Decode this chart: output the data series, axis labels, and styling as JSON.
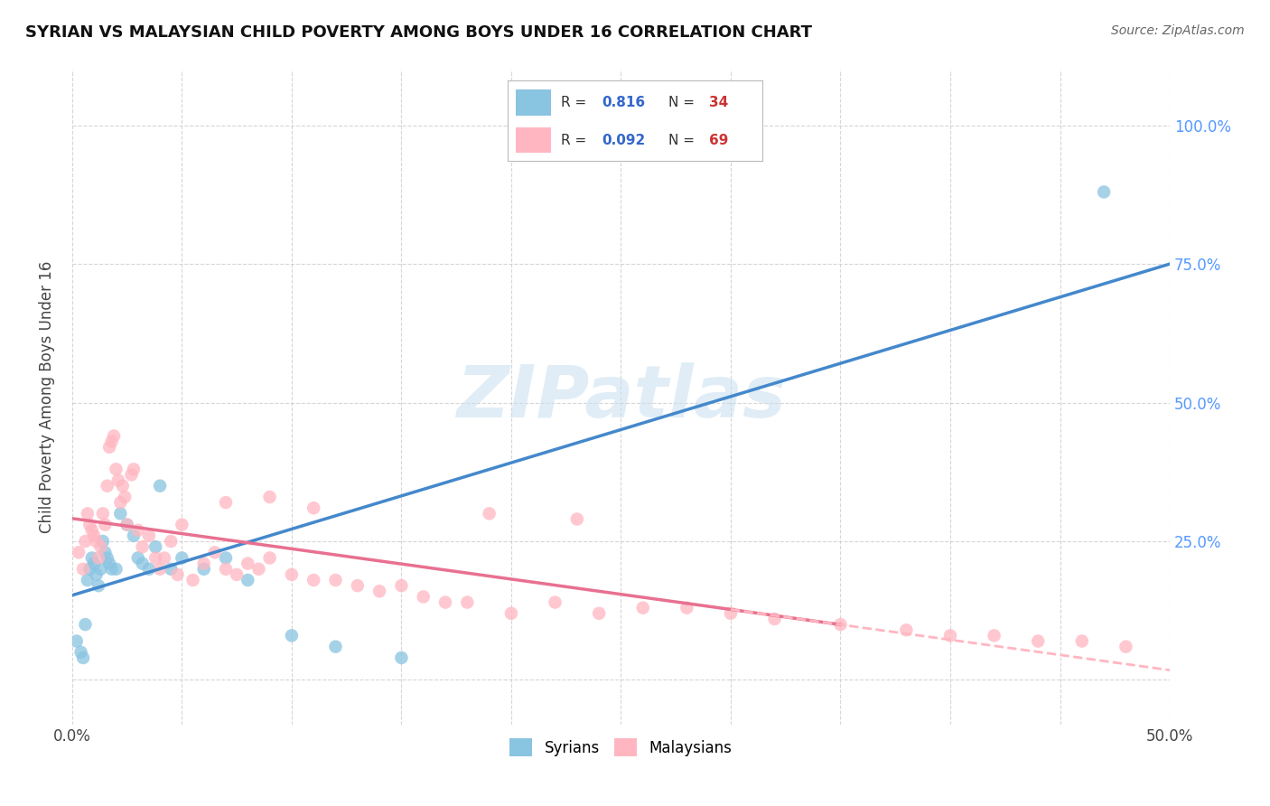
{
  "title": "SYRIAN VS MALAYSIAN CHILD POVERTY AMONG BOYS UNDER 16 CORRELATION CHART",
  "source": "Source: ZipAtlas.com",
  "ylabel": "Child Poverty Among Boys Under 16",
  "xlim": [
    0.0,
    0.5
  ],
  "ylim": [
    -0.08,
    1.1
  ],
  "syrian_color": "#89c4e1",
  "malaysian_color": "#ffb6c1",
  "syrian_line_color": "#4488cc",
  "malaysian_line_solid_color": "#e87090",
  "malaysian_line_dash_color": "#ffb6c1",
  "R_syrian": 0.816,
  "N_syrian": 34,
  "R_malaysian": 0.092,
  "N_malaysian": 69,
  "watermark": "ZIPatlas",
  "background_color": "#ffffff",
  "grid_color": "#cccccc",
  "right_tick_color": "#5599ff",
  "legend_r_color": "#3366cc",
  "legend_n_color": "#cc3333",
  "syrian_scatter_x": [
    0.002,
    0.004,
    0.005,
    0.006,
    0.007,
    0.008,
    0.009,
    0.01,
    0.011,
    0.012,
    0.013,
    0.014,
    0.015,
    0.016,
    0.017,
    0.018,
    0.02,
    0.022,
    0.025,
    0.028,
    0.03,
    0.032,
    0.035,
    0.038,
    0.04,
    0.045,
    0.05,
    0.06,
    0.07,
    0.08,
    0.1,
    0.12,
    0.15,
    0.47
  ],
  "syrian_scatter_y": [
    0.07,
    0.05,
    0.04,
    0.1,
    0.18,
    0.2,
    0.22,
    0.21,
    0.19,
    0.17,
    0.2,
    0.25,
    0.23,
    0.22,
    0.21,
    0.2,
    0.2,
    0.3,
    0.28,
    0.26,
    0.22,
    0.21,
    0.2,
    0.24,
    0.35,
    0.2,
    0.22,
    0.2,
    0.22,
    0.18,
    0.08,
    0.06,
    0.04,
    0.88
  ],
  "malaysian_scatter_x": [
    0.003,
    0.005,
    0.006,
    0.007,
    0.008,
    0.009,
    0.01,
    0.011,
    0.012,
    0.013,
    0.014,
    0.015,
    0.016,
    0.017,
    0.018,
    0.019,
    0.02,
    0.021,
    0.022,
    0.023,
    0.024,
    0.025,
    0.027,
    0.028,
    0.03,
    0.032,
    0.035,
    0.038,
    0.04,
    0.042,
    0.045,
    0.048,
    0.05,
    0.055,
    0.06,
    0.065,
    0.07,
    0.075,
    0.08,
    0.085,
    0.09,
    0.1,
    0.11,
    0.12,
    0.13,
    0.14,
    0.15,
    0.16,
    0.17,
    0.18,
    0.2,
    0.22,
    0.24,
    0.26,
    0.28,
    0.3,
    0.32,
    0.35,
    0.38,
    0.4,
    0.42,
    0.44,
    0.46,
    0.48,
    0.07,
    0.09,
    0.11,
    0.19,
    0.23
  ],
  "malaysian_scatter_y": [
    0.23,
    0.2,
    0.25,
    0.3,
    0.28,
    0.27,
    0.26,
    0.25,
    0.22,
    0.24,
    0.3,
    0.28,
    0.35,
    0.42,
    0.43,
    0.44,
    0.38,
    0.36,
    0.32,
    0.35,
    0.33,
    0.28,
    0.37,
    0.38,
    0.27,
    0.24,
    0.26,
    0.22,
    0.2,
    0.22,
    0.25,
    0.19,
    0.28,
    0.18,
    0.21,
    0.23,
    0.2,
    0.19,
    0.21,
    0.2,
    0.22,
    0.19,
    0.18,
    0.18,
    0.17,
    0.16,
    0.17,
    0.15,
    0.14,
    0.14,
    0.12,
    0.14,
    0.12,
    0.13,
    0.13,
    0.12,
    0.11,
    0.1,
    0.09,
    0.08,
    0.08,
    0.07,
    0.07,
    0.06,
    0.32,
    0.33,
    0.31,
    0.3,
    0.29
  ]
}
